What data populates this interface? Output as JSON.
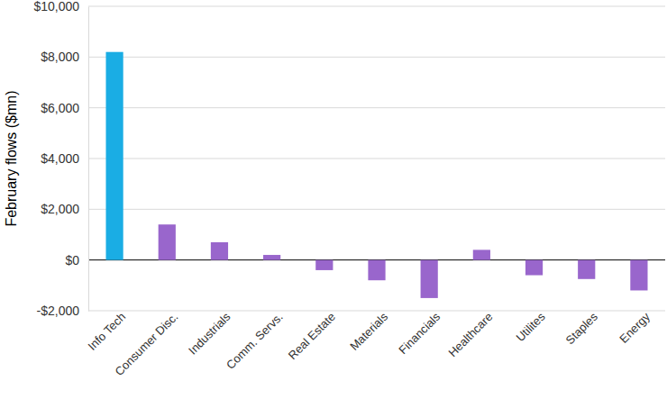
{
  "chart_data": {
    "type": "bar",
    "ylabel": "February flows ($mn)",
    "categories": [
      "Info Tech",
      "Consumer Disc.",
      "Industrials",
      "Comm. Servs.",
      "Real Estate",
      "Materials",
      "Financials",
      "Healthcare",
      "Utilites",
      "Staples",
      "Energy"
    ],
    "values": [
      8200,
      1400,
      700,
      200,
      -400,
      -800,
      -1500,
      400,
      -600,
      -750,
      -1200
    ],
    "colors": [
      "#1aade4",
      "#9966cc",
      "#9966cc",
      "#9966cc",
      "#9966cc",
      "#9966cc",
      "#9966cc",
      "#9966cc",
      "#9966cc",
      "#9966cc",
      "#9966cc"
    ],
    "ylim": [
      -2000,
      10000
    ],
    "yticks": [
      {
        "value": -2000,
        "label": "-$2,000"
      },
      {
        "value": 0,
        "label": "$0"
      },
      {
        "value": 2000,
        "label": "$2,000"
      },
      {
        "value": 4000,
        "label": "$4,000"
      },
      {
        "value": 6000,
        "label": "$6,000"
      },
      {
        "value": 8000,
        "label": "$8,000"
      },
      {
        "value": 10000,
        "label": "$10,000"
      }
    ],
    "grid": true
  }
}
